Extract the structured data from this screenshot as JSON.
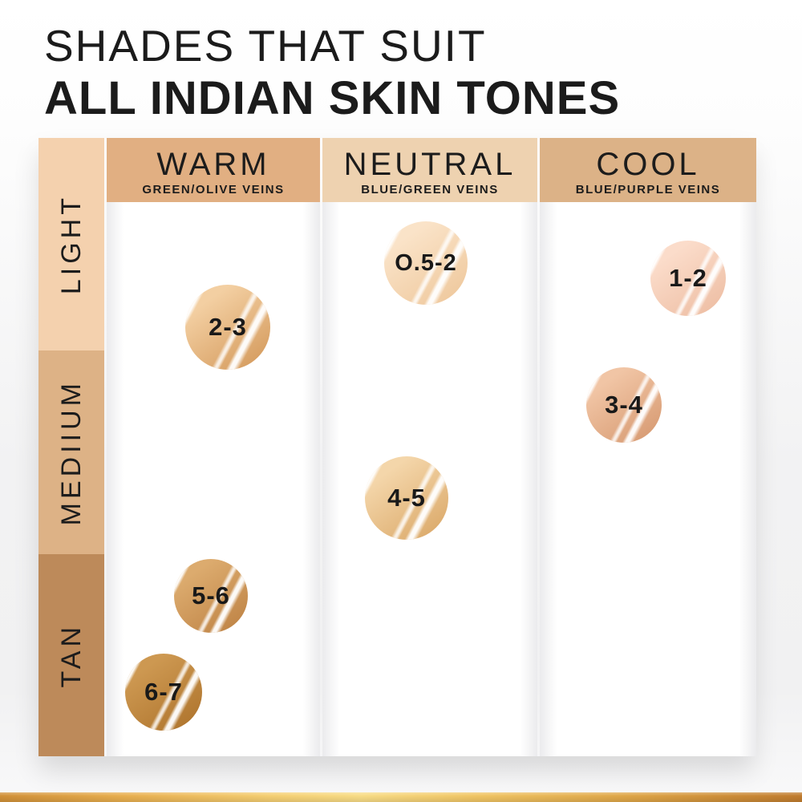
{
  "title": {
    "line1": "SHADES THAT SUIT",
    "line2": "ALL INDIAN SKIN TONES"
  },
  "chart_data": {
    "type": "table",
    "title": "SHADES THAT SUIT ALL INDIAN SKIN TONES",
    "columns": [
      {
        "label": "WARM",
        "sublabel": "GREEN/OLIVE VEINS",
        "header_color": "#e1af82"
      },
      {
        "label": "NEUTRAL",
        "sublabel": "BLUE/GREEN VEINS",
        "header_color": "#eed2b0"
      },
      {
        "label": "COOL",
        "sublabel": "BLUE/PURPLE VEINS",
        "header_color": "#dcb287"
      }
    ],
    "rows": [
      {
        "label": "LIGHT",
        "color": "#f4d1ae"
      },
      {
        "label": "MEDIIUM",
        "color": "#ddb286"
      },
      {
        "label": "TAN",
        "color": "#bd8a5a"
      }
    ],
    "swatches": [
      {
        "shade": "2-3",
        "column": "WARM",
        "row": "LIGHT",
        "color_light": "#f3cfa2",
        "color_dark": "#d69d60"
      },
      {
        "shade": "O.5-2",
        "column": "NEUTRAL",
        "row": "LIGHT",
        "color_light": "#fae3c8",
        "color_dark": "#efc99e"
      },
      {
        "shade": "1-2",
        "column": "COOL",
        "row": "LIGHT",
        "color_light": "#fbdcca",
        "color_dark": "#eebfa5"
      },
      {
        "shade": "3-4",
        "column": "COOL",
        "row": "MEDIIUM",
        "color_light": "#f1c5a5",
        "color_dark": "#d89c74"
      },
      {
        "shade": "4-5",
        "column": "NEUTRAL",
        "row": "MEDIIUM",
        "color_light": "#f4d6aa",
        "color_dark": "#dcab6c"
      },
      {
        "shade": "5-6",
        "column": "WARM",
        "row": "TAN",
        "color_light": "#dcab6e",
        "color_dark": "#c08547"
      },
      {
        "shade": "6-7",
        "column": "WARM",
        "row": "TAN",
        "color_light": "#cd9851",
        "color_dark": "#b0762f"
      }
    ]
  },
  "footer": {
    "gold_gradient": [
      "#d19138",
      "#f5cf73",
      "#f8dc86",
      "#c07c2e"
    ]
  }
}
